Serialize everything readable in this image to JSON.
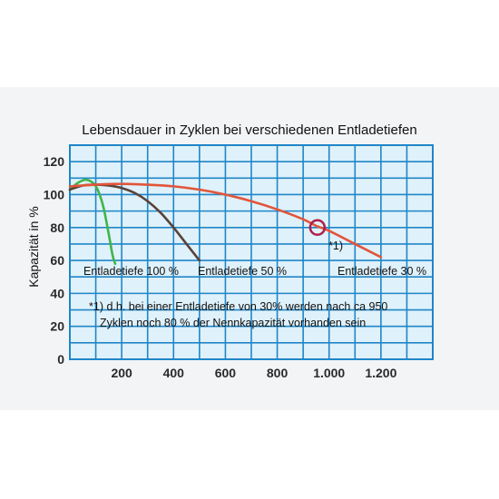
{
  "chart_data": {
    "type": "line",
    "title": "Lebensdauer in Zyklen bei verschiedenen Entladetiefen",
    "ylabel": "Kapazität in %",
    "xlabel": "",
    "xlim": [
      0,
      1400
    ],
    "ylim": [
      0,
      130
    ],
    "grid": true,
    "xticks": [
      {
        "value": 200,
        "label": "200"
      },
      {
        "value": 400,
        "label": "400"
      },
      {
        "value": 600,
        "label": "600"
      },
      {
        "value": 800,
        "label": "800"
      },
      {
        "value": 1000,
        "label": "1.000"
      },
      {
        "value": 1200,
        "label": "1.200"
      }
    ],
    "yticks": [
      {
        "value": 0,
        "label": "0"
      },
      {
        "value": 20,
        "label": "20"
      },
      {
        "value": 40,
        "label": "40"
      },
      {
        "value": 60,
        "label": "60"
      },
      {
        "value": 80,
        "label": "80"
      },
      {
        "value": 100,
        "label": "100"
      },
      {
        "value": 120,
        "label": "120"
      }
    ],
    "series": [
      {
        "name": "Entladetiefe 100 %",
        "color": "#3fb54a",
        "x": [
          0,
          30,
          60,
          90,
          110,
          130,
          150,
          165,
          175
        ],
        "y": [
          103,
          107,
          109,
          107,
          102,
          92,
          76,
          63,
          58
        ]
      },
      {
        "name": "Entladetiefe 50 %",
        "color": "#5a4238",
        "x": [
          0,
          50,
          100,
          150,
          200,
          250,
          300,
          350,
          400,
          450,
          500
        ],
        "y": [
          103,
          105.5,
          106,
          105.5,
          104,
          101,
          96,
          89,
          80,
          70,
          60
        ]
      },
      {
        "name": "Entladetiefe 30 %",
        "color": "#e2553a",
        "x": [
          0,
          100,
          200,
          300,
          400,
          500,
          600,
          700,
          800,
          900,
          950,
          1000,
          1100,
          1200
        ],
        "y": [
          105,
          106,
          106.5,
          106,
          105,
          103,
          100,
          96,
          91,
          85,
          81,
          78,
          70,
          62
        ]
      }
    ],
    "marker": {
      "x": 955,
      "y": 80,
      "label": "*1)"
    },
    "annotation": {
      "line1": "*1) d.h. bei einer Entladetiefe von 30% werden nach ca 950",
      "line2": "Zyklen noch 80 % der Nennkapazität vorhanden sein"
    },
    "colors": {
      "grid": "#1f86c8",
      "plot_background": "#dff1fa"
    }
  }
}
